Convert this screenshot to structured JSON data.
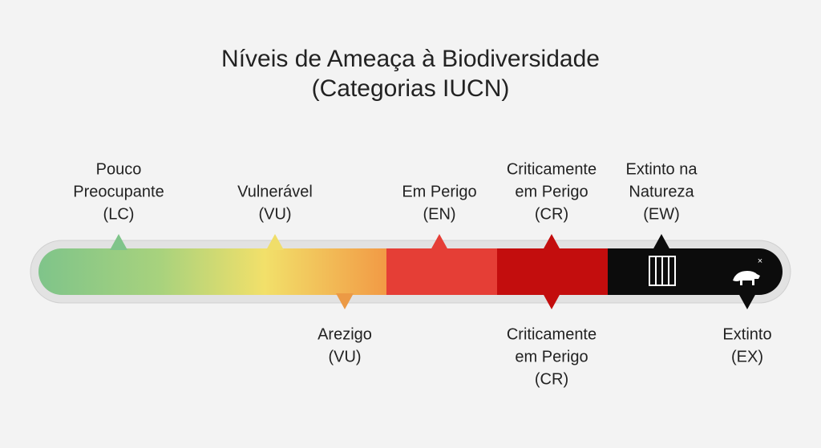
{
  "title": {
    "lines": [
      "Níveis de Ameaça à Biodiversidade",
      "(Categorias IUCN)"
    ]
  },
  "top_labels": [
    {
      "lines": [
        "Pouco",
        "Preocupante",
        "(LC)"
      ]
    },
    {
      "lines": [
        "Vulnerável",
        "(VU)"
      ]
    },
    {
      "lines": [
        "Em Perigo",
        "(EN)"
      ]
    },
    {
      "lines": [
        "Criticamente",
        "em Perigo",
        "(CR)"
      ]
    },
    {
      "lines": [
        "Extinto na",
        "Natureza",
        "(EW)"
      ]
    }
  ],
  "bottom_labels": [
    {
      "lines": [
        "Arezigo",
        "(VU)"
      ]
    },
    {
      "lines": [
        "Criticamente",
        "em Perigo",
        "(CR)"
      ]
    },
    {
      "lines": [
        "Extinto",
        "(EX)"
      ]
    }
  ]
}
